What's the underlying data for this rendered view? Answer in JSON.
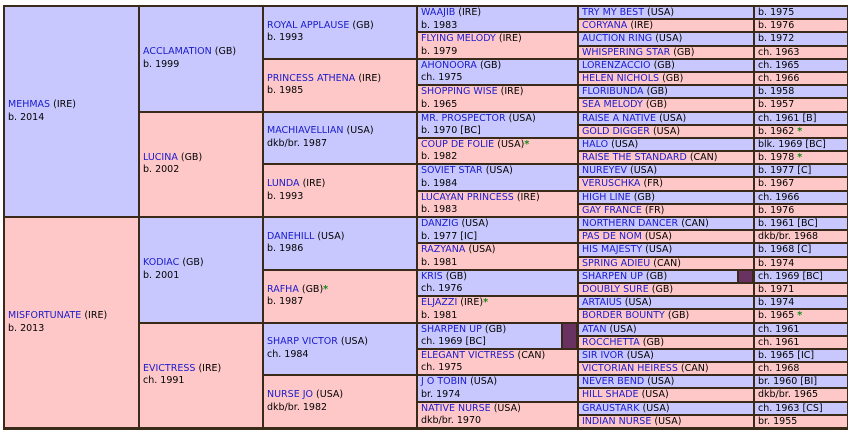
{
  "pedigree": {
    "g1": [
      {
        "name": "MEHMAS",
        "country": "(IRE)",
        "info": "b. 2014",
        "sex": "male"
      },
      {
        "name": "MISFORTUNATE",
        "country": "(IRE)",
        "info": "b. 2013",
        "sex": "female"
      }
    ],
    "g2": [
      {
        "name": "ACCLAMATION",
        "country": "(GB)",
        "info": "b. 1999",
        "sex": "male"
      },
      {
        "name": "LUCINA",
        "country": "(GB)",
        "info": "b. 2002",
        "sex": "female"
      },
      {
        "name": "KODIAC",
        "country": "(GB)",
        "info": "b. 2001",
        "sex": "male"
      },
      {
        "name": "EVICTRESS",
        "country": "(IRE)",
        "info": "ch. 1991",
        "sex": "female"
      }
    ],
    "g3": [
      {
        "name": "ROYAL APPLAUSE",
        "country": "(GB)",
        "info": "b. 1993",
        "sex": "male"
      },
      {
        "name": "PRINCESS ATHENA",
        "country": "(IRE)",
        "info": "b. 1985",
        "sex": "female"
      },
      {
        "name": "MACHIAVELLIAN",
        "country": "(USA)",
        "info": "dkb/br. 1987",
        "sex": "male"
      },
      {
        "name": "LUNDA",
        "country": "(IRE)",
        "info": "b. 1993",
        "sex": "female"
      },
      {
        "name": "DANEHILL",
        "country": "(USA)",
        "info": "b. 1986",
        "sex": "male"
      },
      {
        "name": "RAFHA",
        "country": "(GB)",
        "info": "b. 1987",
        "sex": "female",
        "star": "*"
      },
      {
        "name": "SHARP VICTOR",
        "country": "(USA)",
        "info": "ch. 1984",
        "sex": "male"
      },
      {
        "name": "NURSE JO",
        "country": "(USA)",
        "info": "dkb/br. 1982",
        "sex": "female"
      }
    ],
    "g4": [
      {
        "name": "WAAJIB",
        "country": "(IRE)",
        "info": "b. 1983",
        "sex": "male"
      },
      {
        "name": "FLYING MELODY",
        "country": "(IRE)",
        "info": "b. 1979",
        "sex": "female"
      },
      {
        "name": "AHONOORA",
        "country": "(GB)",
        "info": "ch. 1975",
        "sex": "male"
      },
      {
        "name": "SHOPPING WISE",
        "country": "(IRE)",
        "info": "b. 1965",
        "sex": "female"
      },
      {
        "name": "MR. PROSPECTOR",
        "country": "(USA)",
        "info": "b. 1970 [BC]",
        "sex": "male"
      },
      {
        "name": "COUP DE FOLIE",
        "country": "(USA)",
        "info": "b. 1982",
        "sex": "female",
        "star": "*"
      },
      {
        "name": "SOVIET STAR",
        "country": "(USA)",
        "info": "b. 1984",
        "sex": "male"
      },
      {
        "name": "LUCAYAN PRINCESS",
        "country": "(IRE)",
        "info": "b. 1983",
        "sex": "female"
      },
      {
        "name": "DANZIG",
        "country": "(USA)",
        "info": "b. 1977 [IC]",
        "sex": "male"
      },
      {
        "name": "RAZYANA",
        "country": "(USA)",
        "info": "b. 1981",
        "sex": "female"
      },
      {
        "name": "KRIS",
        "country": "(GB)",
        "info": "ch. 1976",
        "sex": "male"
      },
      {
        "name": "ELJAZZI",
        "country": "(IRE)",
        "info": "b. 1981",
        "sex": "female",
        "star": "*"
      },
      {
        "name": "SHARPEN UP",
        "country": "(GB)",
        "info": "ch. 1969 [BC]",
        "sex": "male",
        "inbred": true
      },
      {
        "name": "ELEGANT VICTRESS",
        "country": "(CAN)",
        "info": "ch. 1975",
        "sex": "female"
      },
      {
        "name": "J O TOBIN",
        "country": "(USA)",
        "info": "br. 1974",
        "sex": "male"
      },
      {
        "name": "NATIVE NURSE",
        "country": "(USA)",
        "info": "dkb/br. 1970",
        "sex": "female"
      }
    ],
    "g5": [
      {
        "name": "TRY MY BEST",
        "country": "(USA)",
        "info": "b. 1975",
        "sex": "male"
      },
      {
        "name": "CORYANA",
        "country": "(IRE)",
        "info": "b. 1976",
        "sex": "female"
      },
      {
        "name": "AUCTION RING",
        "country": "(USA)",
        "info": "b. 1972",
        "sex": "male"
      },
      {
        "name": "WHISPERING STAR",
        "country": "(GB)",
        "info": "ch. 1963",
        "sex": "female"
      },
      {
        "name": "LORENZACCIO",
        "country": "(GB)",
        "info": "ch. 1965",
        "sex": "male"
      },
      {
        "name": "HELEN NICHOLS",
        "country": "(GB)",
        "info": "ch. 1966",
        "sex": "female"
      },
      {
        "name": "FLORIBUNDA",
        "country": "(GB)",
        "info": "b. 1958",
        "sex": "male"
      },
      {
        "name": "SEA MELODY",
        "country": "(GB)",
        "info": "b. 1957",
        "sex": "female"
      },
      {
        "name": "RAISE A NATIVE",
        "country": "(USA)",
        "info": "ch. 1961 [B]",
        "sex": "male"
      },
      {
        "name": "GOLD DIGGER",
        "country": "(USA)",
        "info": "b. 1962",
        "sex": "female",
        "star": "*"
      },
      {
        "name": "HALO",
        "country": "(USA)",
        "info": "blk. 1969 [BC]",
        "sex": "male"
      },
      {
        "name": "RAISE THE STANDARD",
        "country": "(CAN)",
        "info": "b. 1978",
        "sex": "female",
        "star": "*"
      },
      {
        "name": "NUREYEV",
        "country": "(USA)",
        "info": "b. 1977 [C]",
        "sex": "male"
      },
      {
        "name": "VERUSCHKA",
        "country": "(FR)",
        "info": "b. 1967",
        "sex": "female"
      },
      {
        "name": "HIGH LINE",
        "country": "(GB)",
        "info": "ch. 1966",
        "sex": "male"
      },
      {
        "name": "GAY FRANCE",
        "country": "(FR)",
        "info": "b. 1976",
        "sex": "female"
      },
      {
        "name": "NORTHERN DANCER",
        "country": "(CAN)",
        "info": "b. 1961 [BC]",
        "sex": "male"
      },
      {
        "name": "PAS DE NOM",
        "country": "(USA)",
        "info": "dkb/br. 1968",
        "sex": "female"
      },
      {
        "name": "HIS MAJESTY",
        "country": "(USA)",
        "info": "b. 1968 [C]",
        "sex": "male"
      },
      {
        "name": "SPRING ADIEU",
        "country": "(CAN)",
        "info": "b. 1974",
        "sex": "female"
      },
      {
        "name": "SHARPEN UP",
        "country": "(GB)",
        "info": "ch. 1969 [BC]",
        "sex": "male",
        "inbred": true
      },
      {
        "name": "DOUBLY SURE",
        "country": "(GB)",
        "info": "b. 1971",
        "sex": "female"
      },
      {
        "name": "ARTAIUS",
        "country": "(USA)",
        "info": "b. 1974",
        "sex": "male"
      },
      {
        "name": "BORDER BOUNTY",
        "country": "(GB)",
        "info": "b. 1965",
        "sex": "female",
        "star": "*"
      },
      {
        "name": "ATAN",
        "country": "(USA)",
        "info": "ch. 1961",
        "sex": "male"
      },
      {
        "name": "ROCCHETTA",
        "country": "(GB)",
        "info": "ch. 1961",
        "sex": "female"
      },
      {
        "name": "SIR IVOR",
        "country": "(USA)",
        "info": "b. 1965 [IC]",
        "sex": "male"
      },
      {
        "name": "VICTORIAN HEIRESS",
        "country": "(CAN)",
        "info": "ch. 1968",
        "sex": "female"
      },
      {
        "name": "NEVER BEND",
        "country": "(USA)",
        "info": "br. 1960 [BI]",
        "sex": "male"
      },
      {
        "name": "HILL SHADE",
        "country": "(USA)",
        "info": "dkb/br. 1965",
        "sex": "female"
      },
      {
        "name": "GRAUSTARK",
        "country": "(USA)",
        "info": "ch. 1963 [CS]",
        "sex": "male"
      },
      {
        "name": "INDIAN NURSE",
        "country": "(USA)",
        "info": "br. 1955",
        "sex": "female"
      }
    ]
  },
  "colors": {
    "male": "#c8c8ff",
    "female": "#ffc8c8",
    "link": "#1a1acc",
    "star": "#138a13",
    "inbred_marker": "#6a3260",
    "border": "#3a2a1a"
  }
}
